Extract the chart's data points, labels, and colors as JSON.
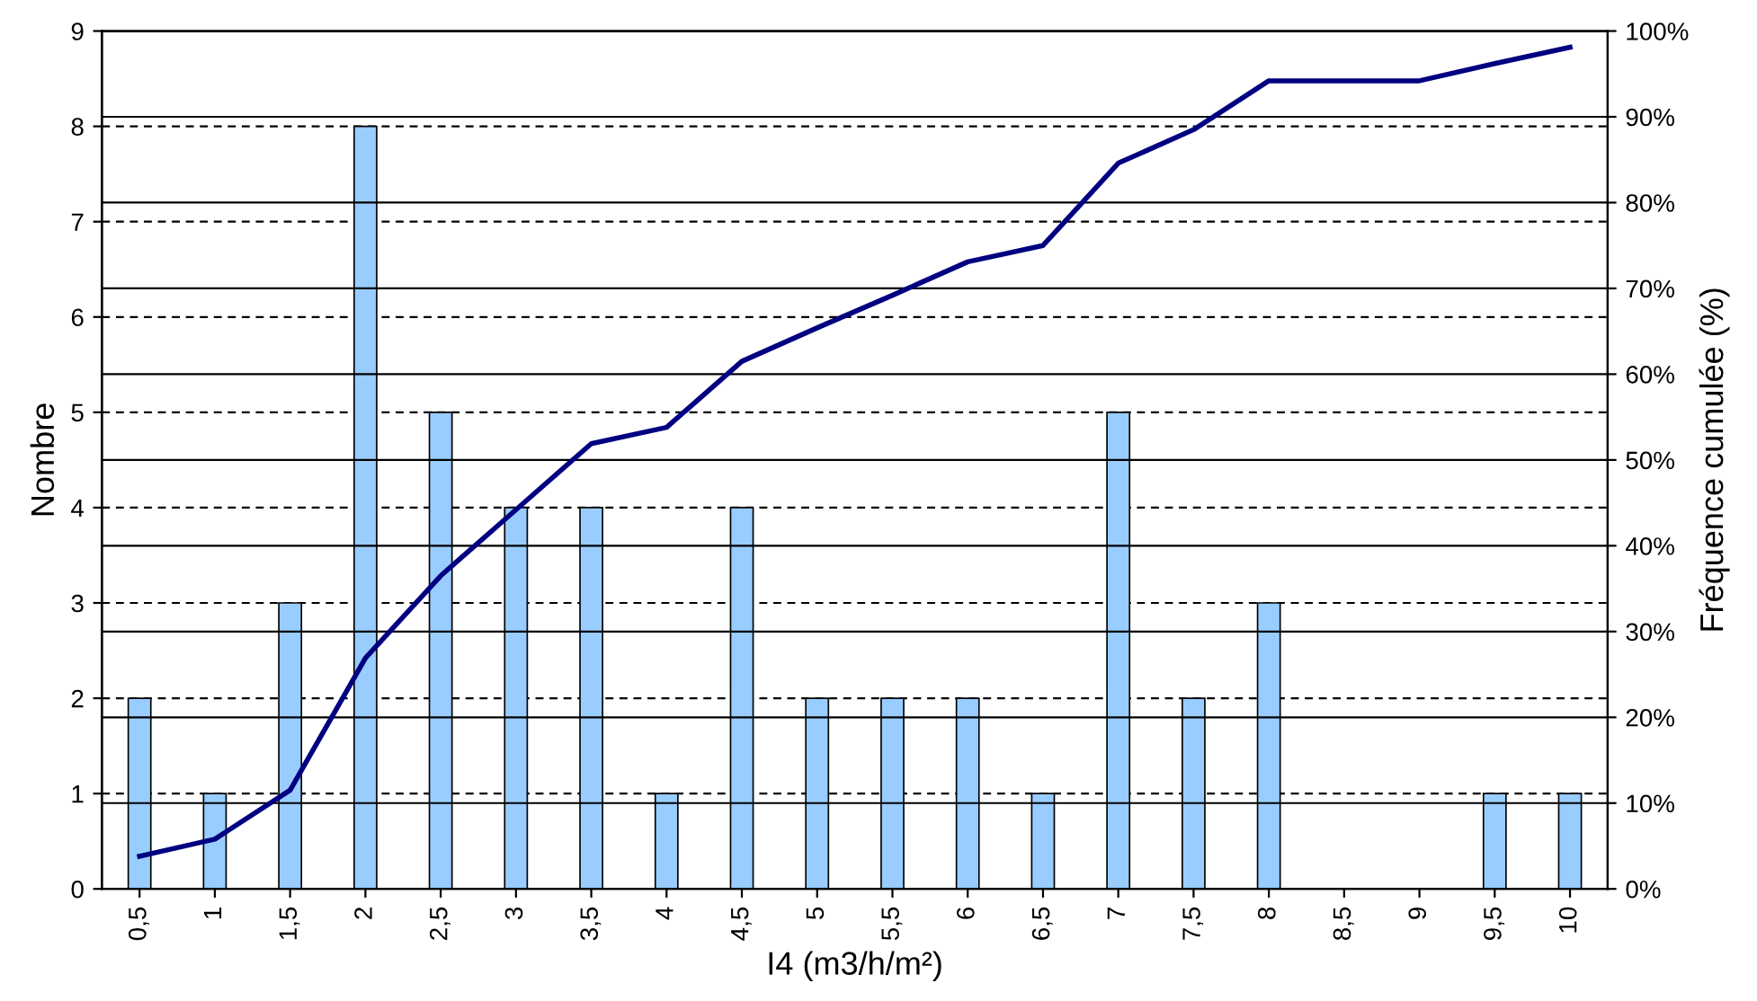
{
  "chart_data": {
    "type": "bar",
    "xlabel": "I4 (m3/h/m²)",
    "ylabel": "Nombre",
    "y2label": "Fréquence cumulée (%)",
    "categories": [
      "0,5",
      "1",
      "1,5",
      "2",
      "2,5",
      "3",
      "3,5",
      "4",
      "4,5",
      "5",
      "5,5",
      "6",
      "6,5",
      "7",
      "7,5",
      "8",
      "8,5",
      "9",
      "9,5",
      "10"
    ],
    "series": [
      {
        "color": "#99ccff",
        "values": [
          2,
          1,
          3,
          8,
          5,
          4,
          4,
          1,
          4,
          2,
          2,
          2,
          1,
          5,
          2,
          3,
          0,
          0,
          1,
          1
        ]
      },
      {
        "type": "line",
        "axis": "y2",
        "color": "#000080",
        "values": [
          3.8,
          5.8,
          11.5,
          26.9,
          36.5,
          44.2,
          51.9,
          53.8,
          61.5,
          65.4,
          69.2,
          73.1,
          75,
          84.6,
          88.5,
          94.2,
          94.2,
          94.2,
          96.2,
          98.1
        ]
      }
    ],
    "ylim": [
      0,
      9
    ],
    "yticks": [
      0,
      1,
      2,
      3,
      4,
      5,
      6,
      7,
      8,
      9
    ],
    "y2lim": [
      0,
      100
    ],
    "y2ticks": [
      {
        "value": 0,
        "label": "0%"
      },
      {
        "value": 10,
        "label": "10%"
      },
      {
        "value": 20,
        "label": "20%"
      },
      {
        "value": 30,
        "label": "30%"
      },
      {
        "value": 40,
        "label": "40%"
      },
      {
        "value": 50,
        "label": "50%"
      },
      {
        "value": 60,
        "label": "60%"
      },
      {
        "value": 70,
        "label": "70%"
      },
      {
        "value": 80,
        "label": "80%"
      },
      {
        "value": 90,
        "label": "90%"
      },
      {
        "value": 100,
        "label": "100%"
      }
    ],
    "grid": true,
    "marker": "none",
    "line_style": "solid"
  }
}
